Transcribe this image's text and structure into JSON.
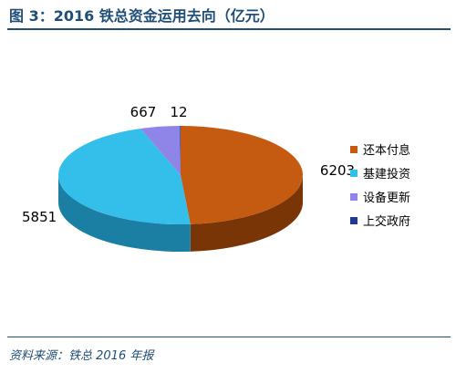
{
  "header": {
    "title": "图 3：2016 铁总资金运用去向（亿元）"
  },
  "footer": {
    "source": "资料来源：铁总 2016 年报"
  },
  "chart_data": {
    "type": "pie",
    "title": "",
    "legend_position": "right",
    "three_d": true,
    "slices": [
      {
        "label": "还本付息",
        "value": 6203,
        "color": "#c55a11",
        "side_color": "#7a3507"
      },
      {
        "label": "基建投资",
        "value": 5851,
        "color": "#33bfea",
        "side_color": "#1b7fa3"
      },
      {
        "label": "设备更新",
        "value": 667,
        "color": "#8f85e8",
        "side_color": "#5a52a8"
      },
      {
        "label": "上交政府",
        "value": 12,
        "color": "#1f3a93",
        "side_color": "#101f55"
      }
    ]
  }
}
